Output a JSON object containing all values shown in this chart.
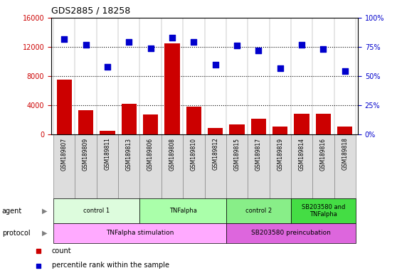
{
  "title": "GDS2885 / 18258",
  "samples": [
    "GSM189807",
    "GSM189809",
    "GSM189811",
    "GSM189813",
    "GSM189806",
    "GSM189808",
    "GSM189810",
    "GSM189812",
    "GSM189815",
    "GSM189817",
    "GSM189819",
    "GSM189814",
    "GSM189816",
    "GSM189818"
  ],
  "counts": [
    7500,
    3300,
    500,
    4200,
    2700,
    12500,
    3800,
    900,
    1400,
    2100,
    1100,
    2800,
    2800,
    1100
  ],
  "percentiles": [
    82,
    77,
    58,
    79,
    74,
    83,
    79,
    60,
    76,
    72,
    57,
    77,
    73,
    54
  ],
  "bar_color": "#CC0000",
  "scatter_color": "#0000CC",
  "ylim_left": [
    0,
    16000
  ],
  "ylim_right": [
    0,
    100
  ],
  "yticks_left": [
    0,
    4000,
    8000,
    12000,
    16000
  ],
  "ytick_labels_left": [
    "0",
    "4000",
    "8000",
    "12000",
    "16000"
  ],
  "yticks_right": [
    0,
    25,
    50,
    75,
    100
  ],
  "ytick_labels_right": [
    "0%",
    "25%",
    "50%",
    "75%",
    "100%"
  ],
  "agent_groups": [
    {
      "label": "control 1",
      "start": 0,
      "end": 3,
      "color": "#DDFCDD"
    },
    {
      "label": "TNFalpha",
      "start": 4,
      "end": 7,
      "color": "#AAFFAA"
    },
    {
      "label": "control 2",
      "start": 8,
      "end": 10,
      "color": "#88EE88"
    },
    {
      "label": "SB203580 and\nTNFalpha",
      "start": 11,
      "end": 13,
      "color": "#44DD44"
    }
  ],
  "protocol_groups": [
    {
      "label": "TNFalpha stimulation",
      "start": 0,
      "end": 7,
      "color": "#FFAAFF"
    },
    {
      "label": "SB203580 preincubation",
      "start": 8,
      "end": 13,
      "color": "#DD66DD"
    }
  ],
  "sample_box_color": "#DDDDDD",
  "sample_box_edge": "#888888",
  "bg_color": "#FFFFFF",
  "grid_color": "#000000",
  "agent_label": "agent",
  "protocol_label": "protocol"
}
